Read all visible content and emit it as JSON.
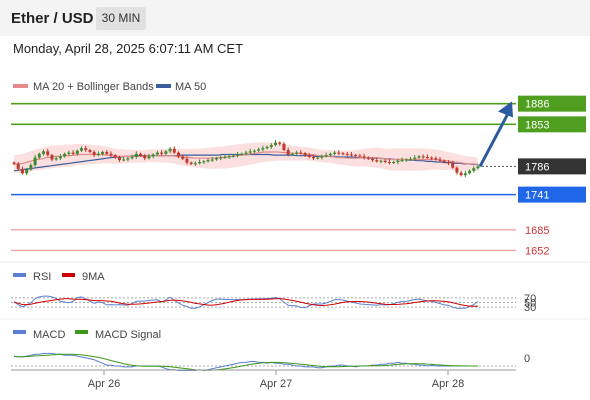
{
  "header": {
    "instrument": "Ether / USD",
    "timeframe": "30 MIN"
  },
  "datetime": "Monday, April 28, 2025 6:07:11 AM CET",
  "colors": {
    "up_candle": "#3c8a2e",
    "down_candle": "#c0392b",
    "bollinger_fill": "#fbd5d5",
    "ma20": "#e58a8a",
    "ma50": "#3b5f9e",
    "resistance": "#4f9e1f",
    "current": "#333333",
    "support": "#1f67e8",
    "target": "#f2a6a6",
    "target_text": "#d03434",
    "arrow": "#2c5aa0",
    "rsi": "#5b7fd0",
    "rsi_ma": "#cc0000",
    "macd": "#5b7fd0",
    "macd_signal": "#3c9a1a"
  },
  "chart_data": [
    {
      "type": "line",
      "panel": "price",
      "legend": [
        "MA 20 + Bollinger Bands",
        "MA 50"
      ],
      "x_ticks": [
        "Apr 26",
        "Apr 27",
        "Apr 28"
      ],
      "levels": [
        {
          "value": 1886,
          "label": "1886",
          "kind": "resistance"
        },
        {
          "value": 1853,
          "label": "1853",
          "kind": "resistance"
        },
        {
          "value": 1786,
          "label": "1786",
          "kind": "current"
        },
        {
          "value": 1741,
          "label": "1741",
          "kind": "support"
        },
        {
          "value": 1685,
          "label": "1685",
          "kind": "target"
        },
        {
          "value": 1652,
          "label": "1652",
          "kind": "target"
        }
      ],
      "ohlc_close": [
        1790,
        1782,
        1775,
        1781,
        1788,
        1800,
        1806,
        1810,
        1804,
        1797,
        1799,
        1802,
        1806,
        1808,
        1806,
        1811,
        1815,
        1812,
        1809,
        1804,
        1806,
        1809,
        1806,
        1804,
        1800,
        1796,
        1797,
        1799,
        1801,
        1806,
        1803,
        1799,
        1802,
        1805,
        1808,
        1806,
        1810,
        1814,
        1808,
        1802,
        1798,
        1792,
        1790,
        1791,
        1793,
        1794,
        1796,
        1797,
        1799,
        1800,
        1801,
        1802,
        1803,
        1805,
        1806,
        1808,
        1810,
        1811,
        1813,
        1815,
        1817,
        1820,
        1824,
        1822,
        1812,
        1805,
        1806,
        1808,
        1807,
        1804,
        1801,
        1799,
        1800,
        1802,
        1804,
        1806,
        1808,
        1807,
        1806,
        1805,
        1804,
        1803,
        1802,
        1800,
        1798,
        1796,
        1794,
        1795,
        1793,
        1792,
        1793,
        1795,
        1796,
        1797,
        1798,
        1800,
        1802,
        1801,
        1800,
        1799,
        1797,
        1795,
        1793,
        1791,
        1784,
        1776,
        1772,
        1775,
        1779,
        1783,
        1786
      ],
      "ma20": [
        1790,
        1790,
        1791,
        1793,
        1795,
        1797,
        1798,
        1800,
        1801,
        1802,
        1802,
        1803,
        1803,
        1804,
        1805,
        1805,
        1805,
        1805,
        1805,
        1805,
        1804,
        1803,
        1802,
        1802,
        1802,
        1802,
        1802,
        1802,
        1802,
        1803,
        1803,
        1803,
        1803,
        1803,
        1803,
        1802,
        1801,
        1800,
        1800,
        1799,
        1799,
        1799,
        1799,
        1799,
        1800,
        1800,
        1801,
        1802,
        1803,
        1804,
        1805,
        1806,
        1807,
        1808,
        1809,
        1809,
        1809,
        1809,
        1808,
        1808,
        1807,
        1807,
        1806,
        1806,
        1805,
        1804,
        1803,
        1802,
        1802,
        1801,
        1800,
        1800,
        1799,
        1799,
        1799,
        1800,
        1800,
        1800,
        1800,
        1799,
        1798,
        1797,
        1797,
        1797,
        1797,
        1797,
        1797,
        1797,
        1797,
        1797,
        1797,
        1797,
        1796,
        1795,
        1794,
        1793,
        1792,
        1791,
        1790,
        1790,
        1789
      ],
      "ma50": [
        1779,
        1780,
        1781,
        1782,
        1783,
        1784,
        1785,
        1786,
        1787,
        1788,
        1789,
        1790,
        1791,
        1792,
        1793,
        1794,
        1795,
        1796,
        1797,
        1798,
        1799,
        1800,
        1801,
        1801,
        1802,
        1802,
        1803,
        1803,
        1803,
        1803,
        1803,
        1803,
        1803,
        1803,
        1803,
        1803,
        1804,
        1804,
        1804,
        1804,
        1804,
        1804,
        1804,
        1804,
        1804,
        1805,
        1805,
        1805,
        1805,
        1805,
        1805,
        1805,
        1805,
        1805,
        1805,
        1805,
        1804,
        1804,
        1804,
        1804,
        1804,
        1803,
        1803,
        1803,
        1803,
        1802,
        1802,
        1802,
        1802,
        1802,
        1801,
        1801,
        1801,
        1801,
        1800,
        1800,
        1800,
        1799,
        1799,
        1799,
        1798,
        1798,
        1797,
        1797,
        1797,
        1796,
        1796,
        1795,
        1795,
        1794,
        1794,
        1793,
        1793,
        1792,
        1792,
        1791,
        1791,
        1790,
        1790,
        1789,
        1789
      ],
      "ylim": [
        1640,
        1895
      ]
    },
    {
      "type": "line",
      "panel": "rsi",
      "legend": [
        "RSI",
        "9MA"
      ],
      "levels": [
        70,
        50,
        30
      ],
      "ylim": [
        0,
        100
      ]
    },
    {
      "type": "line",
      "panel": "macd",
      "legend": [
        "MACD",
        "MACD Signal"
      ],
      "levels": [
        0
      ],
      "zero_label": "0"
    }
  ]
}
